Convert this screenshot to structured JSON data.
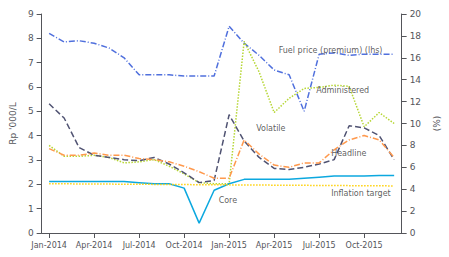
{
  "chart_data": {
    "type": "line",
    "ylabel": "Rp '000/L",
    "y2label": "(%)",
    "xlim": [
      -0.5,
      23.5
    ],
    "xticks": [
      {
        "value": 0,
        "label": "Jan-2014"
      },
      {
        "value": 3,
        "label": "Apr-2014"
      },
      {
        "value": 6,
        "label": "Jul-2014"
      },
      {
        "value": 9,
        "label": "Oct-2014"
      },
      {
        "value": 12,
        "label": "Jan-2015"
      },
      {
        "value": 15,
        "label": "Apr-2015"
      },
      {
        "value": 18,
        "label": "Jul-2015"
      },
      {
        "value": 21,
        "label": "Oct-2015"
      }
    ],
    "ylim": [
      0,
      9
    ],
    "yticks": [
      0,
      1,
      2,
      3,
      4,
      5,
      6,
      7,
      8,
      9
    ],
    "y2lim": [
      0,
      20
    ],
    "y2ticks": [
      0,
      2,
      4,
      6,
      8,
      10,
      12,
      14,
      16,
      18,
      20
    ],
    "grid": false,
    "series": [
      {
        "name": "Fuel price (premium) (lhs)",
        "axis": "y",
        "line_style": "dashdot",
        "x": [
          0,
          1,
          2,
          3,
          4,
          5,
          6,
          7,
          8,
          9,
          10,
          11,
          12,
          13,
          14,
          15,
          16,
          17,
          18,
          19,
          20,
          21,
          22,
          23
        ],
        "values": [
          8.2,
          7.85,
          7.9,
          7.8,
          7.6,
          7.2,
          6.5,
          6.5,
          6.5,
          6.45,
          6.45,
          6.45,
          8.5,
          7.8,
          7.3,
          6.7,
          6.5,
          5.0,
          7.35,
          7.4,
          7.3,
          7.35,
          7.35,
          7.35
        ]
      },
      {
        "name": "Administered",
        "axis": "y2",
        "line_style": "dotted",
        "x": [
          0,
          1,
          2,
          3,
          4,
          5,
          6,
          7,
          8,
          9,
          10,
          11,
          12,
          13,
          14,
          15,
          16,
          17,
          18,
          19,
          20,
          21,
          22,
          23
        ],
        "values": [
          8.0,
          7.0,
          7.0,
          7.1,
          6.9,
          6.4,
          6.5,
          6.7,
          6.1,
          5.4,
          4.6,
          4.5,
          4.5,
          17.5,
          14.7,
          11.0,
          12.3,
          13.2,
          13.3,
          13.5,
          13.4,
          9.7,
          11.0,
          10.0
        ]
      },
      {
        "name": "Volatile",
        "axis": "y2",
        "line_style": "dashed",
        "x": [
          0,
          1,
          2,
          3,
          4,
          5,
          6,
          7,
          8,
          9,
          10,
          11,
          12,
          13,
          14,
          15,
          16,
          17,
          18,
          19,
          20,
          21,
          22,
          23
        ],
        "values": [
          11.8,
          10.5,
          7.8,
          7.1,
          6.9,
          6.7,
          6.6,
          6.9,
          6.3,
          5.5,
          4.6,
          4.8,
          10.8,
          8.4,
          6.9,
          5.9,
          5.8,
          6.0,
          6.3,
          6.7,
          9.8,
          9.6,
          8.9,
          6.7
        ]
      },
      {
        "name": "Headline",
        "axis": "y2",
        "line_style": "dashdot",
        "x": [
          0,
          1,
          2,
          3,
          4,
          5,
          6,
          7,
          8,
          9,
          10,
          11,
          12,
          13,
          14,
          15,
          16,
          17,
          18,
          19,
          20,
          21,
          22,
          23
        ],
        "values": [
          7.7,
          7.1,
          7.1,
          7.3,
          7.1,
          7.1,
          6.8,
          6.7,
          6.5,
          6.1,
          5.6,
          5.0,
          5.0,
          8.5,
          7.2,
          6.2,
          6.0,
          6.4,
          6.4,
          7.6,
          8.5,
          8.9,
          8.5,
          6.9
        ]
      },
      {
        "name": "Core",
        "axis": "y2",
        "line_style": "solid",
        "x": [
          0,
          1,
          2,
          3,
          4,
          5,
          6,
          7,
          8,
          9,
          10,
          11,
          12,
          13,
          14,
          15,
          16,
          17,
          18,
          19,
          20,
          21,
          22,
          23
        ],
        "values": [
          4.7,
          4.7,
          4.7,
          4.7,
          4.7,
          4.7,
          4.6,
          4.5,
          4.5,
          4.1,
          0.9,
          3.9,
          4.5,
          4.9,
          4.9,
          4.9,
          4.9,
          5.0,
          5.1,
          5.2,
          5.2,
          5.2,
          5.25,
          5.25
        ]
      },
      {
        "name": "Inflation target",
        "axis": "y2",
        "line_style": "dotted",
        "x": [
          0,
          23
        ],
        "values": [
          4.5,
          4.3
        ]
      }
    ],
    "annotations": [
      {
        "text": "Fuel price (premium) (lhs)",
        "x": 15.3,
        "y": 7.5,
        "axis": "y"
      },
      {
        "text": "Administered",
        "x": 17.8,
        "y": 13.0,
        "axis": "y2"
      },
      {
        "text": "Volatile",
        "x": 13.8,
        "y": 9.5,
        "axis": "y2"
      },
      {
        "text": "Headline",
        "x": 18.8,
        "y": 7.3,
        "axis": "y2"
      },
      {
        "text": "Core",
        "x": 11.3,
        "y": 3.0,
        "axis": "y2"
      },
      {
        "text": "Inflation target",
        "x": 18.8,
        "y": 3.6,
        "axis": "y2"
      }
    ]
  }
}
